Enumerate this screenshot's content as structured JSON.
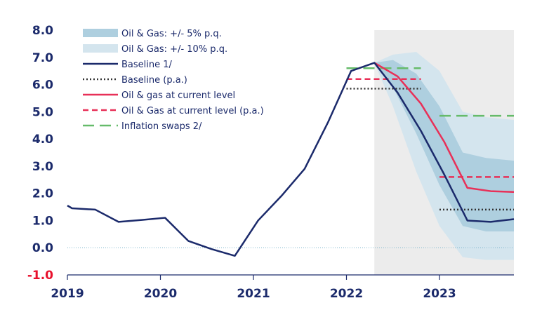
{
  "chart_data": {
    "type": "line",
    "title": "",
    "xlabel": "",
    "ylabel": "",
    "xlim": [
      2019.0,
      2023.8
    ],
    "ylim": [
      -1.0,
      8.0
    ],
    "x_ticks": [
      2019,
      2020,
      2021,
      2022,
      2023
    ],
    "x_tick_labels": [
      "2019",
      "2020",
      "2021",
      "2022",
      "2023"
    ],
    "y_ticks": [
      8.0,
      7.0,
      6.0,
      5.0,
      4.0,
      3.0,
      2.0,
      1.0,
      0.0,
      -1.0
    ],
    "y_tick_labels": [
      "8.0",
      "7.0",
      "6.0",
      "5.0",
      "4.0",
      "3.0",
      "2.0",
      "1.0",
      "0.0",
      "-1.0"
    ],
    "negative_tick_color": "#e8112d",
    "positive_tick_color": "#1b2a6b",
    "zero_line": true,
    "forecast_region": [
      2022.3,
      2023.8
    ],
    "legend_position": "top-left",
    "colors": {
      "baseline": "#1b2a6b",
      "baseline_pa": "#333333",
      "current": "#e83058",
      "current_pa": "#e83058",
      "swaps": "#66bb6a",
      "band5": "#aecfdf",
      "band10": "#d4e5ee",
      "forecast_bg": "#ececec",
      "zero_line": "#7fb6cc"
    },
    "bands": [
      {
        "name": "Oil & Gas: +/- 10% p.q.",
        "x": [
          2022.3,
          2022.5,
          2022.75,
          2023.0,
          2023.25,
          2023.5,
          2023.8
        ],
        "upper": [
          6.8,
          7.1,
          7.2,
          6.5,
          5.0,
          4.8,
          4.7
        ],
        "lower": [
          6.8,
          5.2,
          2.8,
          0.8,
          -0.35,
          -0.45,
          -0.45
        ]
      },
      {
        "name": "Oil & Gas: +/- 5% p.q.",
        "x": [
          2022.3,
          2022.5,
          2022.75,
          2023.0,
          2023.25,
          2023.5,
          2023.8
        ],
        "upper": [
          6.8,
          6.9,
          6.4,
          5.2,
          3.5,
          3.3,
          3.2
        ],
        "lower": [
          6.8,
          5.9,
          4.2,
          2.3,
          0.8,
          0.6,
          0.6
        ]
      }
    ],
    "series": [
      {
        "name": "Baseline 1/",
        "style": "solid",
        "x": [
          2019.0,
          2019.05,
          2019.3,
          2019.55,
          2019.8,
          2020.05,
          2020.3,
          2020.55,
          2020.8,
          2021.05,
          2021.3,
          2021.55,
          2021.8,
          2022.05,
          2022.3,
          2022.55,
          2022.8,
          2023.05,
          2023.3,
          2023.55,
          2023.8
        ],
        "y": [
          1.55,
          1.45,
          1.4,
          0.95,
          1.02,
          1.1,
          0.25,
          -0.05,
          -0.3,
          1.0,
          1.9,
          2.9,
          4.6,
          6.5,
          6.8,
          5.7,
          4.3,
          2.7,
          1.0,
          0.95,
          1.05
        ]
      },
      {
        "name": "Baseline (p.a.)",
        "style": "dotted",
        "segments": [
          {
            "x": [
              2022.0,
              2022.8
            ],
            "y": [
              5.85,
              5.85
            ]
          },
          {
            "x": [
              2023.0,
              2023.8
            ],
            "y": [
              1.4,
              1.4
            ]
          }
        ]
      },
      {
        "name": "Oil & gas at current level",
        "style": "solid",
        "x": [
          2022.3,
          2022.55,
          2022.8,
          2023.05,
          2023.3,
          2023.55,
          2023.8
        ],
        "y": [
          6.8,
          6.3,
          5.3,
          3.9,
          2.2,
          2.08,
          2.05
        ]
      },
      {
        "name": "Oil & Gas at current level (p.a.)",
        "style": "dashed",
        "segments": [
          {
            "x": [
              2022.0,
              2022.8
            ],
            "y": [
              6.2,
              6.2
            ]
          },
          {
            "x": [
              2023.0,
              2023.8
            ],
            "y": [
              2.6,
              2.6
            ]
          }
        ]
      },
      {
        "name": "Inflation swaps 2/",
        "style": "long-dashed",
        "segments": [
          {
            "x": [
              2022.0,
              2022.8
            ],
            "y": [
              6.6,
              6.6
            ]
          },
          {
            "x": [
              2023.0,
              2023.8
            ],
            "y": [
              4.85,
              4.85
            ]
          }
        ]
      }
    ],
    "legend": [
      {
        "key": "band5",
        "label": "Oil & Gas: +/- 5% p.q."
      },
      {
        "key": "band10",
        "label": "Oil & Gas: +/- 10% p.q."
      },
      {
        "key": "baseline",
        "label": "Baseline 1/"
      },
      {
        "key": "baseline_pa",
        "label": "Baseline (p.a.)"
      },
      {
        "key": "current",
        "label": "Oil & gas at current level"
      },
      {
        "key": "current_pa",
        "label": "Oil & Gas at current level (p.a.)"
      },
      {
        "key": "swaps",
        "label": "Inflation swaps 2/"
      }
    ]
  }
}
